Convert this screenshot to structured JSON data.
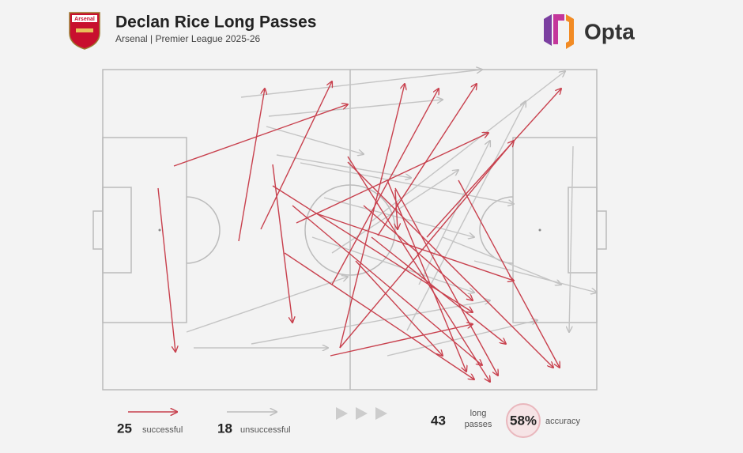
{
  "header": {
    "title": "Declan Rice Long Passes",
    "subtitle": "Arsenal | Premier League 2025-26",
    "crest_text": "Arsenal",
    "brand": "Opta"
  },
  "legend": {
    "successful_count": "25",
    "successful_label": "successful",
    "unsuccessful_count": "18",
    "unsuccessful_label": "unsuccessful",
    "total_count": "43",
    "total_label": "long passes",
    "accuracy_value": "58%",
    "accuracy_label": "accuracy"
  }
}
